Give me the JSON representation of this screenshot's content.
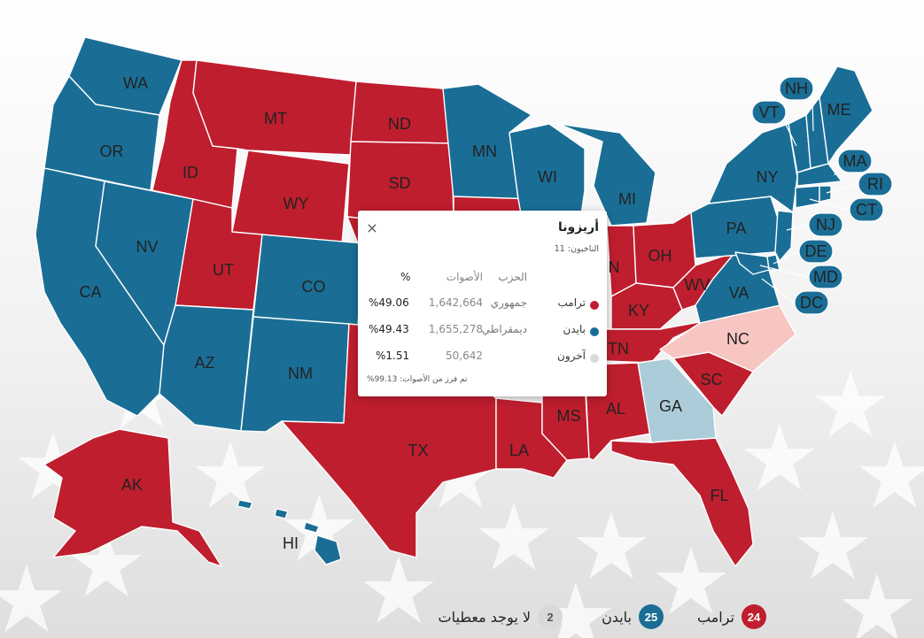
{
  "colors": {
    "republican": "#bf1e2e",
    "democrat": "#1a6e96",
    "lean_republican": "#f7c6c2",
    "lean_democrat": "#adccd9",
    "no_data": "#d9d9d9",
    "background_star": "#ffffff"
  },
  "states": [
    {
      "abbr": "WA",
      "status": "democrat"
    },
    {
      "abbr": "OR",
      "status": "democrat"
    },
    {
      "abbr": "CA",
      "status": "democrat"
    },
    {
      "abbr": "NV",
      "status": "democrat"
    },
    {
      "abbr": "ID",
      "status": "republican"
    },
    {
      "abbr": "MT",
      "status": "republican"
    },
    {
      "abbr": "WY",
      "status": "republican"
    },
    {
      "abbr": "UT",
      "status": "republican"
    },
    {
      "abbr": "AZ",
      "status": "democrat"
    },
    {
      "abbr": "CO",
      "status": "democrat"
    },
    {
      "abbr": "NM",
      "status": "democrat"
    },
    {
      "abbr": "ND",
      "status": "republican"
    },
    {
      "abbr": "SD",
      "status": "republican"
    },
    {
      "abbr": "TX",
      "status": "republican"
    },
    {
      "abbr": "MN",
      "status": "democrat"
    },
    {
      "abbr": "WI",
      "status": "democrat"
    },
    {
      "abbr": "MI",
      "status": "democrat"
    },
    {
      "abbr": "IN",
      "label": "N",
      "status": "republican"
    },
    {
      "abbr": "OH",
      "status": "republican"
    },
    {
      "abbr": "KY",
      "status": "republican"
    },
    {
      "abbr": "WV",
      "status": "republican"
    },
    {
      "abbr": "TN",
      "status": "republican"
    },
    {
      "abbr": "LA",
      "status": "republican"
    },
    {
      "abbr": "MS",
      "status": "republican"
    },
    {
      "abbr": "AL",
      "status": "republican"
    },
    {
      "abbr": "GA",
      "status": "lean_democrat"
    },
    {
      "abbr": "FL",
      "status": "republican"
    },
    {
      "abbr": "SC",
      "status": "republican"
    },
    {
      "abbr": "NC",
      "status": "lean_republican"
    },
    {
      "abbr": "VA",
      "status": "democrat"
    },
    {
      "abbr": "PA",
      "status": "democrat"
    },
    {
      "abbr": "NY",
      "status": "democrat"
    },
    {
      "abbr": "VT",
      "status": "democrat"
    },
    {
      "abbr": "NH",
      "status": "democrat"
    },
    {
      "abbr": "ME",
      "status": "democrat"
    },
    {
      "abbr": "MA",
      "status": "democrat"
    },
    {
      "abbr": "RI",
      "status": "democrat"
    },
    {
      "abbr": "CT",
      "status": "democrat"
    },
    {
      "abbr": "NJ",
      "status": "democrat"
    },
    {
      "abbr": "DE",
      "status": "democrat"
    },
    {
      "abbr": "MD",
      "status": "democrat"
    },
    {
      "abbr": "DC",
      "status": "democrat"
    },
    {
      "abbr": "AK",
      "status": "republican"
    },
    {
      "abbr": "HI",
      "status": "democrat"
    }
  ],
  "popup": {
    "close_icon": "×",
    "state_name": "أريزونا",
    "electors_label": "الناخبون: 11",
    "headers": {
      "party": "الحزب",
      "votes": "الأصوات",
      "percent": "%"
    },
    "rows": [
      {
        "candidate": "ترامب",
        "party": "جمهوري",
        "votes": "1,642,664",
        "percent": "%49.06",
        "color": "#bf1e2e"
      },
      {
        "candidate": "بايدن",
        "party": "ديمقراطي",
        "votes": "1,655,278",
        "percent": "%49.43",
        "color": "#1a6e96"
      },
      {
        "candidate": "آخرون",
        "party": "",
        "votes": "50,642",
        "percent": "%1.51",
        "color": "#d9d9d9"
      }
    ],
    "counted_note": "تم فرز من الأصوات: 99.13%"
  },
  "legend": [
    {
      "count": "24",
      "label": "ترامب",
      "color": "#bf1e2e"
    },
    {
      "count": "25",
      "label": "بايدن",
      "color": "#1a6e96"
    },
    {
      "count": "2",
      "label": "لا يوجد معطيات",
      "color": "#d9d9d9"
    }
  ]
}
